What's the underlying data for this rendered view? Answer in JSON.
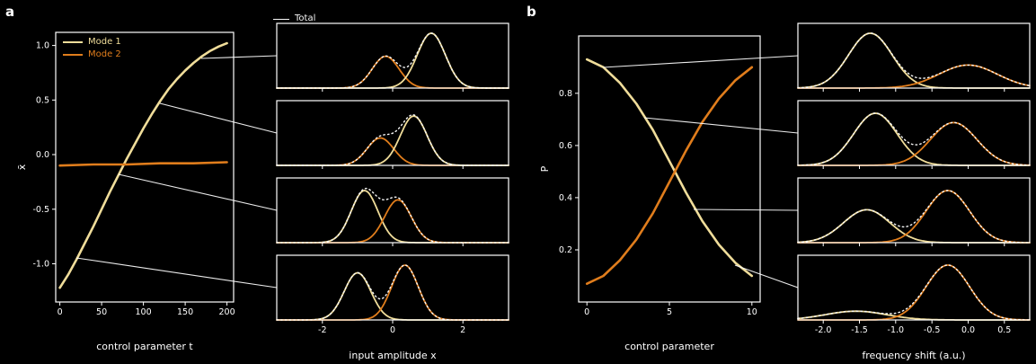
{
  "colors": {
    "background": "#000000",
    "axis": "#ffffff",
    "mode1": "#f0dd9a",
    "mode2": "#e07d1c",
    "total": "#f8f8f8"
  },
  "panels": {
    "a": {
      "label": "a",
      "legend": {
        "mode1": "Mode 1",
        "mode2": "Mode 2"
      },
      "total_legend": "Total"
    },
    "b": {
      "label": "b"
    }
  },
  "chart_data": [
    {
      "id": "a-main",
      "type": "line",
      "lw": 2.6,
      "xlabel": "control parameter t",
      "ylabel": "x̄",
      "xlim": [
        -5,
        208
      ],
      "ylim": [
        -1.35,
        1.12
      ],
      "xticks": [
        0,
        50,
        100,
        150,
        200
      ],
      "xtick_labels": [
        "0",
        "50",
        "100",
        "150",
        "200"
      ],
      "yticks": [
        1.0,
        0.5,
        0.0,
        -0.5,
        -1.0
      ],
      "ytick_labels": [
        "1.0",
        "0.5",
        "0.0",
        "-0.5",
        "-1.0"
      ],
      "margins": {
        "l": 44,
        "r": 6,
        "t": 22,
        "b": 58
      },
      "series": [
        {
          "name": "Mode 1",
          "color": "mode1",
          "x": [
            0,
            10,
            20,
            30,
            40,
            50,
            60,
            70,
            80,
            90,
            100,
            110,
            120,
            130,
            140,
            150,
            160,
            170,
            180,
            190,
            200
          ],
          "y": [
            -1.22,
            -1.1,
            -0.96,
            -0.81,
            -0.66,
            -0.5,
            -0.34,
            -0.19,
            -0.04,
            0.1,
            0.24,
            0.37,
            0.49,
            0.6,
            0.69,
            0.77,
            0.84,
            0.9,
            0.95,
            0.99,
            1.02
          ]
        },
        {
          "name": "Mode 2",
          "color": "mode2",
          "x": [
            0,
            40,
            80,
            120,
            160,
            200
          ],
          "y": [
            -0.1,
            -0.09,
            -0.09,
            -0.08,
            -0.08,
            -0.07
          ]
        }
      ]
    },
    {
      "id": "a-dist-1",
      "type": "line",
      "lw": 1.8,
      "xlim": [
        -3.3,
        3.3
      ],
      "ylim": [
        0,
        1.18
      ],
      "xticks": [
        -2,
        0,
        2
      ],
      "xtick_labels": null,
      "margins": {
        "l": 8,
        "r": 4,
        "t": 4,
        "b": 4
      },
      "total": true,
      "series": [
        {
          "name": "Mode 2",
          "color": "mode2",
          "gauss": {
            "mu": -0.2,
            "sigma": 0.38,
            "amp": 0.58
          }
        },
        {
          "name": "Mode 1",
          "color": "mode1",
          "gauss": {
            "mu": 1.1,
            "sigma": 0.4,
            "amp": 1.0
          }
        }
      ]
    },
    {
      "id": "a-dist-2",
      "type": "line",
      "lw": 1.8,
      "xlim": [
        -3.3,
        3.3
      ],
      "ylim": [
        0,
        1.18
      ],
      "xticks": [
        -2,
        0,
        2
      ],
      "xtick_labels": null,
      "margins": {
        "l": 8,
        "r": 4,
        "t": 4,
        "b": 4
      },
      "total": true,
      "series": [
        {
          "name": "Mode 2",
          "color": "mode2",
          "gauss": {
            "mu": -0.35,
            "sigma": 0.38,
            "amp": 0.5
          }
        },
        {
          "name": "Mode 1",
          "color": "mode1",
          "gauss": {
            "mu": 0.6,
            "sigma": 0.38,
            "amp": 0.9
          }
        }
      ]
    },
    {
      "id": "a-dist-3",
      "type": "line",
      "lw": 1.8,
      "xlim": [
        -3.3,
        3.3
      ],
      "ylim": [
        0,
        1.18
      ],
      "xticks": [
        -2,
        0,
        2
      ],
      "xtick_labels": null,
      "margins": {
        "l": 8,
        "r": 4,
        "t": 4,
        "b": 4
      },
      "total": true,
      "series": [
        {
          "name": "Mode 1",
          "color": "mode1",
          "gauss": {
            "mu": -0.8,
            "sigma": 0.38,
            "amp": 0.95
          }
        },
        {
          "name": "Mode 2",
          "color": "mode2",
          "gauss": {
            "mu": 0.15,
            "sigma": 0.38,
            "amp": 0.78
          }
        }
      ]
    },
    {
      "id": "a-dist-4",
      "type": "line",
      "lw": 1.8,
      "xlabel": "input amplitude x",
      "xlim": [
        -3.3,
        3.3
      ],
      "ylim": [
        0,
        1.18
      ],
      "xticks": [
        -2,
        0,
        2
      ],
      "xtick_labels": [
        "-2",
        "0",
        "2"
      ],
      "margins": {
        "l": 8,
        "r": 4,
        "t": 4,
        "b": 48
      },
      "total": true,
      "series": [
        {
          "name": "Mode 1",
          "color": "mode1",
          "gauss": {
            "mu": -1.0,
            "sigma": 0.38,
            "amp": 0.86
          }
        },
        {
          "name": "Mode 2",
          "color": "mode2",
          "gauss": {
            "mu": 0.35,
            "sigma": 0.38,
            "amp": 1.0
          }
        }
      ]
    },
    {
      "id": "b-main",
      "type": "line",
      "lw": 2.6,
      "xlabel": "control parameter",
      "ylabel": "P",
      "xlim": [
        -0.5,
        10.5
      ],
      "ylim": [
        0,
        1.02
      ],
      "xticks": [
        0,
        5,
        10
      ],
      "xtick_labels": [
        "0",
        "5",
        "10"
      ],
      "yticks": [
        0.8,
        0.6,
        0.4,
        0.2
      ],
      "ytick_labels": [
        "0.8",
        "0.6",
        "0.4",
        "0.2"
      ],
      "margins": {
        "l": 44,
        "r": 6,
        "t": 26,
        "b": 58
      },
      "series": [
        {
          "name": "Mode 1",
          "color": "mode1",
          "x": [
            0,
            1,
            2,
            3,
            4,
            5,
            6,
            7,
            8,
            9,
            10
          ],
          "y": [
            0.93,
            0.9,
            0.84,
            0.76,
            0.66,
            0.54,
            0.42,
            0.31,
            0.22,
            0.15,
            0.1
          ]
        },
        {
          "name": "Mode 2",
          "color": "mode2",
          "x": [
            0,
            1,
            2,
            3,
            4,
            5,
            6,
            7,
            8,
            9,
            10
          ],
          "y": [
            0.07,
            0.1,
            0.16,
            0.24,
            0.34,
            0.46,
            0.58,
            0.69,
            0.78,
            0.85,
            0.9
          ]
        }
      ]
    },
    {
      "id": "b-dist-1",
      "type": "line",
      "lw": 1.8,
      "xlim": [
        -2.35,
        0.85
      ],
      "ylim": [
        0,
        1.18
      ],
      "xticks": [
        -2.0,
        -1.5,
        -1.0,
        -0.5,
        0.0,
        0.5
      ],
      "xtick_labels": null,
      "margins": {
        "l": 8,
        "r": 4,
        "t": 4,
        "b": 4
      },
      "total": true,
      "series": [
        {
          "name": "Mode 1",
          "color": "mode1",
          "gauss": {
            "mu": -1.35,
            "sigma": 0.3,
            "amp": 1.0
          }
        },
        {
          "name": "Mode 2",
          "color": "mode2",
          "gauss": {
            "mu": 0.0,
            "sigma": 0.4,
            "amp": 0.42
          }
        }
      ]
    },
    {
      "id": "b-dist-2",
      "type": "line",
      "lw": 1.8,
      "xlim": [
        -2.35,
        0.85
      ],
      "ylim": [
        0,
        1.18
      ],
      "xticks": [
        -2.0,
        -1.5,
        -1.0,
        -0.5,
        0.0,
        0.5
      ],
      "xtick_labels": null,
      "margins": {
        "l": 8,
        "r": 4,
        "t": 4,
        "b": 4
      },
      "total": true,
      "series": [
        {
          "name": "Mode 1",
          "color": "mode1",
          "gauss": {
            "mu": -1.28,
            "sigma": 0.3,
            "amp": 0.95
          }
        },
        {
          "name": "Mode 2",
          "color": "mode2",
          "gauss": {
            "mu": -0.2,
            "sigma": 0.32,
            "amp": 0.78
          }
        }
      ]
    },
    {
      "id": "b-dist-3",
      "type": "line",
      "lw": 1.8,
      "xlim": [
        -2.35,
        0.85
      ],
      "ylim": [
        0,
        1.18
      ],
      "xticks": [
        -2.0,
        -1.5,
        -1.0,
        -0.5,
        0.0,
        0.5
      ],
      "xtick_labels": null,
      "margins": {
        "l": 8,
        "r": 4,
        "t": 4,
        "b": 4
      },
      "total": true,
      "series": [
        {
          "name": "Mode 1",
          "color": "mode1",
          "gauss": {
            "mu": -1.4,
            "sigma": 0.32,
            "amp": 0.6
          }
        },
        {
          "name": "Mode 2",
          "color": "mode2",
          "gauss": {
            "mu": -0.28,
            "sigma": 0.3,
            "amp": 0.95
          }
        }
      ]
    },
    {
      "id": "b-dist-4",
      "type": "line",
      "lw": 1.8,
      "xlabel": "frequency shift (a.u.)",
      "xlim": [
        -2.35,
        0.85
      ],
      "ylim": [
        0,
        1.18
      ],
      "xticks": [
        -2.0,
        -1.5,
        -1.0,
        -0.5,
        0.0,
        0.5
      ],
      "xtick_labels": [
        "-2.0",
        "-1.5",
        "-1.0",
        "-0.5",
        "0.0",
        "0.5"
      ],
      "margins": {
        "l": 8,
        "r": 4,
        "t": 4,
        "b": 48
      },
      "total": true,
      "series": [
        {
          "name": "Mode 1",
          "color": "mode1",
          "gauss": {
            "mu": -1.55,
            "sigma": 0.42,
            "amp": 0.16
          }
        },
        {
          "name": "Mode 2",
          "color": "mode2",
          "gauss": {
            "mu": -0.28,
            "sigma": 0.3,
            "amp": 1.0
          }
        }
      ]
    }
  ]
}
